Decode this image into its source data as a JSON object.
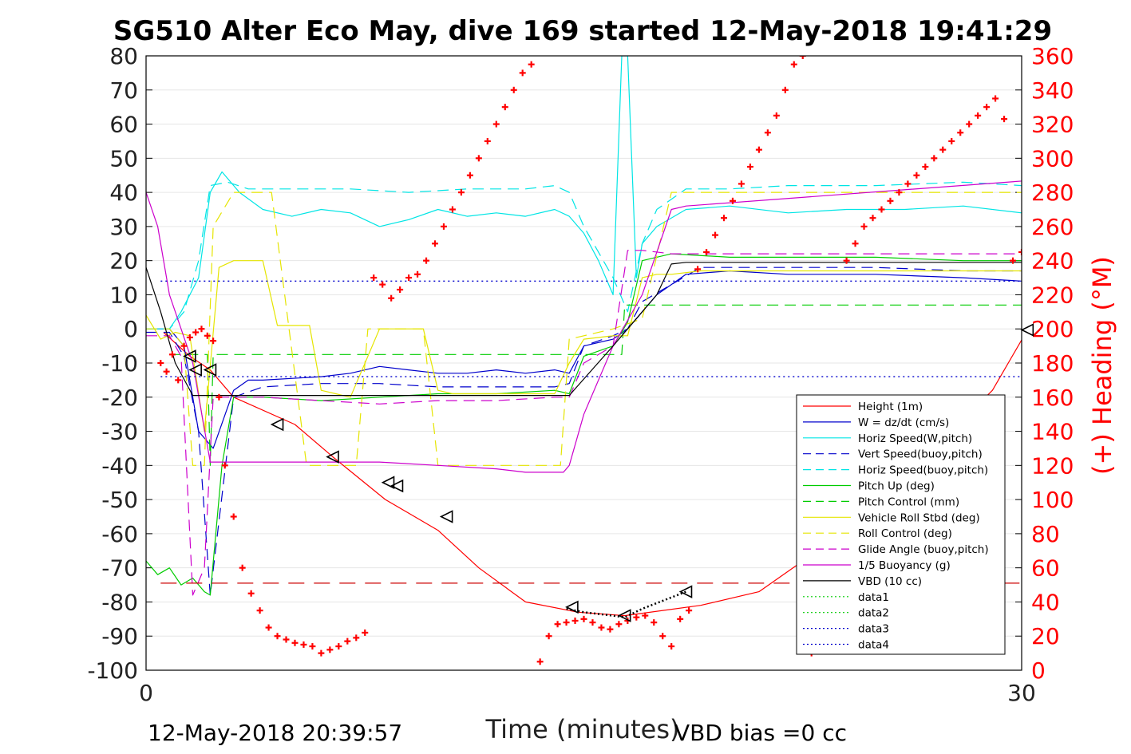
{
  "chart_data": {
    "type": "line",
    "title": "SG510 Alter Eco May, dive 169 started 12-May-2018 19:41:29",
    "xlabel": "Time (minutes)",
    "ylabel_right": "(+) Heading (°M)",
    "xlim": [
      0,
      30
    ],
    "ylim_left": [
      -100,
      80
    ],
    "ylim_right": [
      0,
      360
    ],
    "x_ticks": [
      "0",
      "30"
    ],
    "y_ticks_left": [
      "80",
      "70",
      "60",
      "50",
      "40",
      "30",
      "20",
      "10",
      "0",
      "-10",
      "-20",
      "-30",
      "-40",
      "-50",
      "-60",
      "-70",
      "-80",
      "-90",
      "-100"
    ],
    "y_ticks_right": [
      "360",
      "340",
      "320",
      "300",
      "280",
      "260",
      "240",
      "220",
      "200",
      "180",
      "160",
      "140",
      "120",
      "100",
      "80",
      "60",
      "40",
      "20",
      "0"
    ],
    "grid": "horizontal",
    "legend_position": "lower-right",
    "footer_left": "12-May-2018 20:39:57",
    "footer_right": "VBD bias =0 cc",
    "legend": [
      {
        "label": "Height (1m)",
        "color": "#ff0000",
        "style": "solid"
      },
      {
        "label": "W = dz/dt (cm/s)",
        "color": "#0000cc",
        "style": "solid"
      },
      {
        "label": "Horiz Speed(W,pitch)",
        "color": "#00e5e5",
        "style": "solid"
      },
      {
        "label": "Vert Speed(buoy,pitch)",
        "color": "#0000cc",
        "style": "dashed"
      },
      {
        "label": "Horiz Speed(buoy,pitch)",
        "color": "#00e5e5",
        "style": "dashed"
      },
      {
        "label": "Pitch Up (deg)",
        "color": "#00cc00",
        "style": "solid"
      },
      {
        "label": "Pitch Control (mm)",
        "color": "#00cc00",
        "style": "dashed"
      },
      {
        "label": "Vehicle Roll Stbd (deg)",
        "color": "#e5e500",
        "style": "solid"
      },
      {
        "label": "Roll Control (deg)",
        "color": "#e5e500",
        "style": "dashed"
      },
      {
        "label": "Glide Angle (buoy,pitch)",
        "color": "#cc00cc",
        "style": "dashed"
      },
      {
        "label": "1/5 Buoyancy (g)",
        "color": "#cc00cc",
        "style": "solid"
      },
      {
        "label": "VBD (10 cc)",
        "color": "#000000",
        "style": "solid"
      },
      {
        "label": "data1",
        "color": "#00cc00",
        "style": "dotted"
      },
      {
        "label": "data2",
        "color": "#00cc00",
        "style": "dotted"
      },
      {
        "label": "data3",
        "color": "#0000cc",
        "style": "dotted"
      },
      {
        "label": "data4",
        "color": "#0000cc",
        "style": "dotted"
      }
    ],
    "series": [
      {
        "name": "Height (1m)",
        "color": "#ff0000",
        "dash": "",
        "width": 1.2,
        "x": [
          0.6,
          1.5,
          2.2,
          3,
          5.1,
          6.4,
          8.2,
          10,
          11.4,
          13,
          14.8,
          16.4,
          19,
          21,
          23,
          25,
          27,
          29,
          30.2
        ],
        "y": [
          -1,
          -8,
          -12,
          -20,
          -28,
          -37.5,
          -50,
          -59,
          -70,
          -80,
          -83,
          -84,
          -81,
          -77,
          -65,
          -50,
          -35,
          -18,
          -0.3
        ]
      },
      {
        "name": "Triangle markers",
        "color": "#000000",
        "dash": "",
        "width": 0,
        "marker": "triangle",
        "x": [
          1.5,
          1.7,
          2.2,
          4.5,
          6.4,
          8.3,
          8.6,
          10.3,
          14.6,
          16.4,
          18.5,
          30.2
        ],
        "y": [
          -8,
          -12,
          -12,
          -28,
          -37.5,
          -45,
          -46,
          -55,
          -81.5,
          -84,
          -77,
          -0.3
        ]
      },
      {
        "name": "W = dz/dt (cm/s)",
        "color": "#0000cc",
        "dash": "",
        "width": 1.2,
        "x": [
          0,
          0.8,
          1.3,
          1.8,
          2.3,
          3,
          3.5,
          4,
          6,
          7,
          8,
          9,
          10,
          11,
          12,
          13,
          14,
          14.5,
          15,
          16,
          16.5,
          17,
          17.5,
          18,
          18.5,
          20,
          22,
          25,
          28,
          30,
          30.3
        ],
        "y": [
          0,
          0,
          -5,
          -30,
          -35,
          -18,
          -15,
          -15,
          -14,
          -13,
          -11,
          -12,
          -13,
          -13,
          -12,
          -13,
          -12,
          -13,
          -5,
          -3,
          0,
          5,
          10,
          13,
          16,
          17,
          16,
          16,
          15,
          14,
          0
        ]
      },
      {
        "name": "Horiz Speed(W,pitch)",
        "color": "#00e5e5",
        "dash": "",
        "width": 1.2,
        "x": [
          0,
          0.8,
          1.2,
          1.8,
          2.2,
          2.6,
          3.2,
          4,
          5,
          6,
          7,
          8,
          9,
          10,
          11,
          12,
          13,
          14,
          14.5,
          15,
          15.5,
          16,
          16.3,
          16.5,
          16.8,
          17,
          17.5,
          18.5,
          20,
          22,
          24,
          26,
          28,
          30,
          30.3
        ],
        "y": [
          0,
          0,
          5,
          15,
          40,
          46,
          40,
          35,
          33,
          35,
          34,
          30,
          32,
          35,
          33,
          34,
          33,
          35,
          33,
          28,
          20,
          10,
          80,
          80,
          15,
          25,
          30,
          35,
          36,
          34,
          35,
          35,
          36,
          34,
          22
        ]
      },
      {
        "name": "Vert Speed(buoy,pitch)",
        "color": "#0000cc",
        "dash": "14,8",
        "width": 1.2,
        "x": [
          0,
          0.8,
          1.3,
          1.8,
          2.2,
          3,
          4,
          6,
          8,
          10,
          12,
          14,
          14.5,
          15,
          16,
          16.5,
          17,
          18,
          19,
          22,
          25,
          28,
          30
        ],
        "y": [
          -1,
          -1,
          -8,
          -30,
          -78,
          -20,
          -17,
          -16,
          -16,
          -17,
          -17,
          -17,
          -16,
          -5,
          -2,
          0,
          8,
          13,
          18,
          18,
          18,
          17,
          17
        ]
      },
      {
        "name": "Horiz Speed(buoy,pitch)",
        "color": "#00e5e5",
        "dash": "14,8",
        "width": 1.2,
        "x": [
          0,
          0.8,
          1.3,
          1.8,
          2.2,
          2.8,
          3.5,
          5,
          7,
          9,
          11,
          13,
          14,
          14.5,
          15,
          16,
          16.5,
          17,
          17.5,
          18.5,
          20,
          22,
          25,
          28,
          30
        ],
        "y": [
          0,
          0,
          5,
          20,
          42,
          43,
          41,
          41,
          41,
          40,
          41,
          41,
          42,
          40,
          30,
          15,
          5,
          25,
          35,
          41,
          41,
          42,
          42,
          43,
          42
        ]
      },
      {
        "name": "Pitch Up (deg)",
        "color": "#00cc00",
        "dash": "",
        "width": 1.2,
        "x": [
          0,
          0.4,
          0.8,
          1.2,
          1.6,
          2,
          2.2,
          2.6,
          3,
          4,
          6,
          8,
          10,
          12,
          14,
          14.5,
          15,
          16,
          16.5,
          17,
          18,
          20,
          22,
          25,
          28,
          30,
          30.3
        ],
        "y": [
          -68,
          -72,
          -70,
          -75,
          -73,
          -77,
          -78,
          -40,
          -20,
          -20,
          -21,
          -20,
          -19,
          -19,
          -18,
          -19,
          -8,
          -5,
          2,
          20,
          22,
          21,
          21,
          21,
          20,
          20,
          -7
        ]
      },
      {
        "name": "Pitch Control (mm)",
        "color": "#00cc00",
        "dash": "14,8",
        "width": 1.2,
        "x": [
          0.8,
          2.1,
          2.2,
          2.3,
          16.3,
          16.4,
          30.3
        ],
        "y": [
          -7.5,
          -7.5,
          -40,
          -7.5,
          -7.5,
          7,
          7
        ]
      },
      {
        "name": "Vehicle Roll Stbd (deg)",
        "color": "#e5e500",
        "dash": "",
        "width": 1.2,
        "x": [
          0,
          0.5,
          1,
          1.5,
          2,
          2.5,
          3,
          3.5,
          4,
          4.5,
          5,
          5.6,
          6,
          6.5,
          7,
          7.5,
          8,
          8.5,
          9,
          9.5,
          10,
          10.5,
          11,
          14,
          14.5,
          15,
          16,
          16.5,
          17,
          17.5,
          18,
          19,
          30.3
        ],
        "y": [
          4,
          -3,
          -1,
          -2,
          -30,
          18,
          20,
          20,
          20,
          1,
          1,
          1,
          -18,
          -19,
          -20,
          -10,
          0,
          0,
          0,
          0,
          -18,
          -19,
          -19,
          -19,
          -10,
          -3,
          -2,
          -2,
          15,
          16,
          16,
          17,
          17
        ]
      },
      {
        "name": "Roll Control (deg)",
        "color": "#e5e500",
        "dash": "14,8",
        "width": 1.2,
        "x": [
          0,
          0.8,
          1.3,
          1.6,
          2,
          2.3,
          3,
          4,
          4.3,
          5.5,
          6,
          6.4,
          7,
          7.2,
          7.6,
          8,
          9,
          9.5,
          10,
          10.5,
          11,
          13,
          14,
          14.2,
          14.5,
          15,
          16,
          17,
          18,
          19,
          30.3
        ],
        "y": [
          0,
          0,
          -5,
          -40,
          -40,
          30,
          40,
          40,
          40,
          -40,
          -40,
          -40,
          -40,
          -40,
          0,
          0,
          0,
          0,
          -40,
          -40,
          -40,
          -40,
          -40,
          -40,
          -3,
          -2,
          0,
          3,
          40,
          40,
          40
        ]
      },
      {
        "name": "Glide Angle (buoy,pitch)",
        "color": "#cc00cc",
        "dash": "14,8",
        "width": 1.2,
        "x": [
          0,
          0.8,
          1.2,
          1.6,
          2,
          2.3,
          3,
          4,
          6,
          8,
          10,
          12,
          14,
          14.5,
          15,
          16,
          16.5,
          17,
          18,
          19,
          22,
          25,
          28,
          30
        ],
        "y": [
          -2,
          -2,
          -8,
          -78,
          -70,
          -20,
          -20,
          -20,
          -21,
          -22,
          -21,
          -21,
          -20,
          -20,
          -10,
          -5,
          23,
          23,
          22,
          22,
          22,
          22,
          22,
          22
        ]
      },
      {
        "name": "1/5 Buoyancy (g)",
        "color": "#cc00cc",
        "dash": "",
        "width": 1.2,
        "x": [
          0,
          0.4,
          0.8,
          1.2,
          1.6,
          2.2,
          3,
          4,
          6,
          8,
          10,
          12,
          13,
          14,
          14.3,
          14.5,
          15,
          16,
          17,
          18,
          18.5,
          30.3
        ],
        "y": [
          40,
          30,
          10,
          0,
          -10,
          -39,
          -39,
          -39,
          -39,
          -39,
          -40,
          -41,
          -42,
          -42,
          -42,
          -40,
          -25,
          -5,
          10,
          35,
          36,
          43.5
        ]
      },
      {
        "name": "VBD (10 cc)",
        "color": "#000000",
        "dash": "",
        "width": 1.2,
        "x": [
          0,
          0.5,
          1,
          1.6,
          2.2,
          3,
          6,
          10,
          14,
          14.5,
          16,
          17,
          17.5,
          18,
          18.5,
          25,
          30,
          30.3
        ],
        "y": [
          18,
          5,
          -10,
          -19.5,
          -19.5,
          -19.5,
          -19.5,
          -19.5,
          -19.5,
          -19.5,
          -5,
          5,
          10,
          19,
          19.5,
          19.5,
          19.5,
          19.5
        ]
      },
      {
        "name": "data1",
        "color": "#00cc00",
        "dash": "2,3",
        "width": 1.2,
        "x": [],
        "y": []
      },
      {
        "name": "data2",
        "color": "#00cc00",
        "dash": "2,3",
        "width": 1.2,
        "x": [],
        "y": []
      },
      {
        "name": "data3",
        "color": "#0000cc",
        "dash": "2,4",
        "width": 1.4,
        "x": [
          0.5,
          30.3
        ],
        "y": [
          14,
          14
        ]
      },
      {
        "name": "data4",
        "color": "#0000cc",
        "dash": "2,4",
        "width": 1.4,
        "x": [
          0.5,
          30.3
        ],
        "y": [
          -14,
          -14
        ]
      },
      {
        "name": "Red dashed level",
        "color": "#cc0000",
        "dash": "20,12",
        "width": 1.3,
        "x": [
          0.5,
          30.3
        ],
        "y": [
          -74.5,
          -74.5
        ]
      },
      {
        "name": "Apogee black dotted",
        "color": "#000000",
        "dash": "2,3",
        "width": 2.5,
        "x": [
          14.4,
          15,
          16,
          16.4,
          17,
          18.5
        ],
        "y": [
          -82,
          -83,
          -84,
          -84.5,
          -82,
          -77
        ]
      }
    ],
    "heading_points": {
      "axis": "right",
      "x": [
        0.5,
        0.7,
        0.9,
        1.1,
        1.3,
        1.5,
        1.7,
        1.9,
        2.1,
        2.3,
        2.5,
        2.7,
        3,
        3.3,
        3.6,
        3.9,
        4.2,
        4.5,
        4.8,
        5.1,
        5.4,
        5.7,
        6,
        6.3,
        6.6,
        6.9,
        7.2,
        7.5,
        7.8,
        8.1,
        8.4,
        8.7,
        9,
        9.3,
        9.6,
        9.9,
        10.2,
        10.5,
        10.8,
        11.1,
        11.4,
        11.7,
        12,
        12.3,
        12.6,
        12.9,
        13.2,
        13.5,
        13.8,
        14.1,
        14.4,
        14.7,
        15,
        15.3,
        15.6,
        15.9,
        16.2,
        16.5,
        16.8,
        17.1,
        17.4,
        17.7,
        18,
        18.3,
        18.6,
        18.9,
        19.2,
        19.5,
        19.8,
        20.1,
        20.4,
        20.7,
        21,
        21.3,
        21.6,
        21.9,
        22.2,
        22.5,
        22.8,
        23.1,
        23.4,
        23.7,
        24,
        24.3,
        24.6,
        24.9,
        25.2,
        25.5,
        25.8,
        26.1,
        26.4,
        26.7,
        27,
        27.3,
        27.6,
        27.9,
        28.2,
        28.5,
        28.8,
        29.1,
        29.4,
        29.7,
        30,
        30.3
      ],
      "y": [
        180,
        175,
        185,
        170,
        190,
        195,
        198,
        200,
        196,
        193,
        160,
        120,
        90,
        60,
        45,
        35,
        25,
        20,
        18,
        16,
        15,
        14,
        10,
        12,
        14,
        17,
        19,
        22,
        230,
        226,
        218,
        223,
        230,
        232,
        240,
        250,
        260,
        270,
        280,
        290,
        300,
        310,
        320,
        330,
        340,
        350,
        355,
        5,
        20,
        27,
        28,
        29,
        30,
        28,
        25,
        24,
        27,
        29,
        31,
        32,
        28,
        20,
        14,
        30,
        35,
        235,
        245,
        255,
        265,
        275,
        285,
        295,
        305,
        315,
        325,
        340,
        355,
        360,
        10,
        20,
        30,
        35,
        240,
        250,
        260,
        265,
        270,
        275,
        280,
        285,
        290,
        295,
        300,
        305,
        310,
        315,
        320,
        325,
        330,
        335,
        323,
        240,
        245,
        323
      ]
    }
  }
}
